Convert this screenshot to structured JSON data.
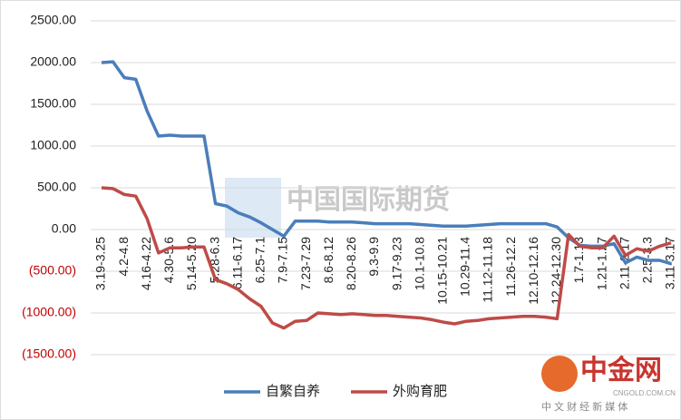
{
  "chart_data": {
    "type": "line",
    "categories": [
      "3.19-3.25",
      null,
      "4.2-4.8",
      null,
      "4.16-4.22",
      null,
      "4.30-5.6",
      null,
      "5.14-5.20",
      null,
      "5.28-6.3",
      null,
      "6.11-6.17",
      null,
      "6.25-7.1",
      null,
      "7.9-7.15",
      null,
      "7.23-7.29",
      null,
      "8.6-8.12",
      null,
      "8.20-8.26",
      null,
      "9.3-9.9",
      null,
      "9.17-9.23",
      null,
      "10.1-10.8",
      null,
      "10.15-10.21",
      null,
      "10.29-11.4",
      null,
      "11.12-11.18",
      null,
      "11.26-12.2",
      null,
      "12.10-12.16",
      null,
      "12.24-12.30",
      null,
      "1.7-1.13",
      null,
      "1.21-1.27",
      null,
      "2.11-2.17",
      null,
      "2.25-3.3",
      null,
      "3.11-3.17"
    ],
    "series": [
      {
        "name": "自繁自养",
        "color": "#4a7ebb",
        "values": [
          2000,
          2010,
          1820,
          1800,
          1420,
          1120,
          1130,
          1120,
          1120,
          1120,
          310,
          280,
          200,
          150,
          80,
          0,
          -80,
          100,
          100,
          100,
          90,
          90,
          90,
          80,
          70,
          70,
          70,
          70,
          60,
          50,
          40,
          40,
          40,
          50,
          60,
          70,
          70,
          70,
          70,
          70,
          30,
          -100,
          -190,
          -200,
          -200,
          -170,
          -400,
          -330,
          -370,
          -370,
          -410
        ]
      },
      {
        "name": "外购育肥",
        "color": "#be4b48",
        "values": [
          500,
          490,
          420,
          400,
          130,
          -280,
          -220,
          -220,
          -210,
          -210,
          -600,
          -650,
          -720,
          -830,
          -920,
          -1120,
          -1180,
          -1100,
          -1090,
          -1000,
          -1010,
          -1020,
          -1010,
          -1020,
          -1030,
          -1030,
          -1040,
          -1050,
          -1060,
          -1080,
          -1110,
          -1130,
          -1100,
          -1090,
          -1070,
          -1060,
          -1050,
          -1040,
          -1040,
          -1050,
          -1070,
          -60,
          -200,
          -220,
          -220,
          -80,
          -310,
          -230,
          -260,
          -200,
          -160
        ]
      }
    ],
    "ylim": [
      -1500,
      2500
    ],
    "yticks": [
      {
        "value": 2500,
        "label": "2500.00"
      },
      {
        "value": 2000,
        "label": "2000.00"
      },
      {
        "value": 1500,
        "label": "1500.00"
      },
      {
        "value": 1000,
        "label": "1000.00"
      },
      {
        "value": 500,
        "label": "500.00"
      },
      {
        "value": 0,
        "label": "0.00"
      },
      {
        "value": -500,
        "label": "(500.00)"
      },
      {
        "value": -1000,
        "label": "(1000.00)"
      },
      {
        "value": -1500,
        "label": "(1500.00)"
      }
    ],
    "grid": true,
    "legend": "bottom",
    "watermarks": [
      "中国国际期货",
      "中金网",
      "CNGOLD.COM.CN",
      "中 文 财 经 新 媒 体"
    ]
  }
}
